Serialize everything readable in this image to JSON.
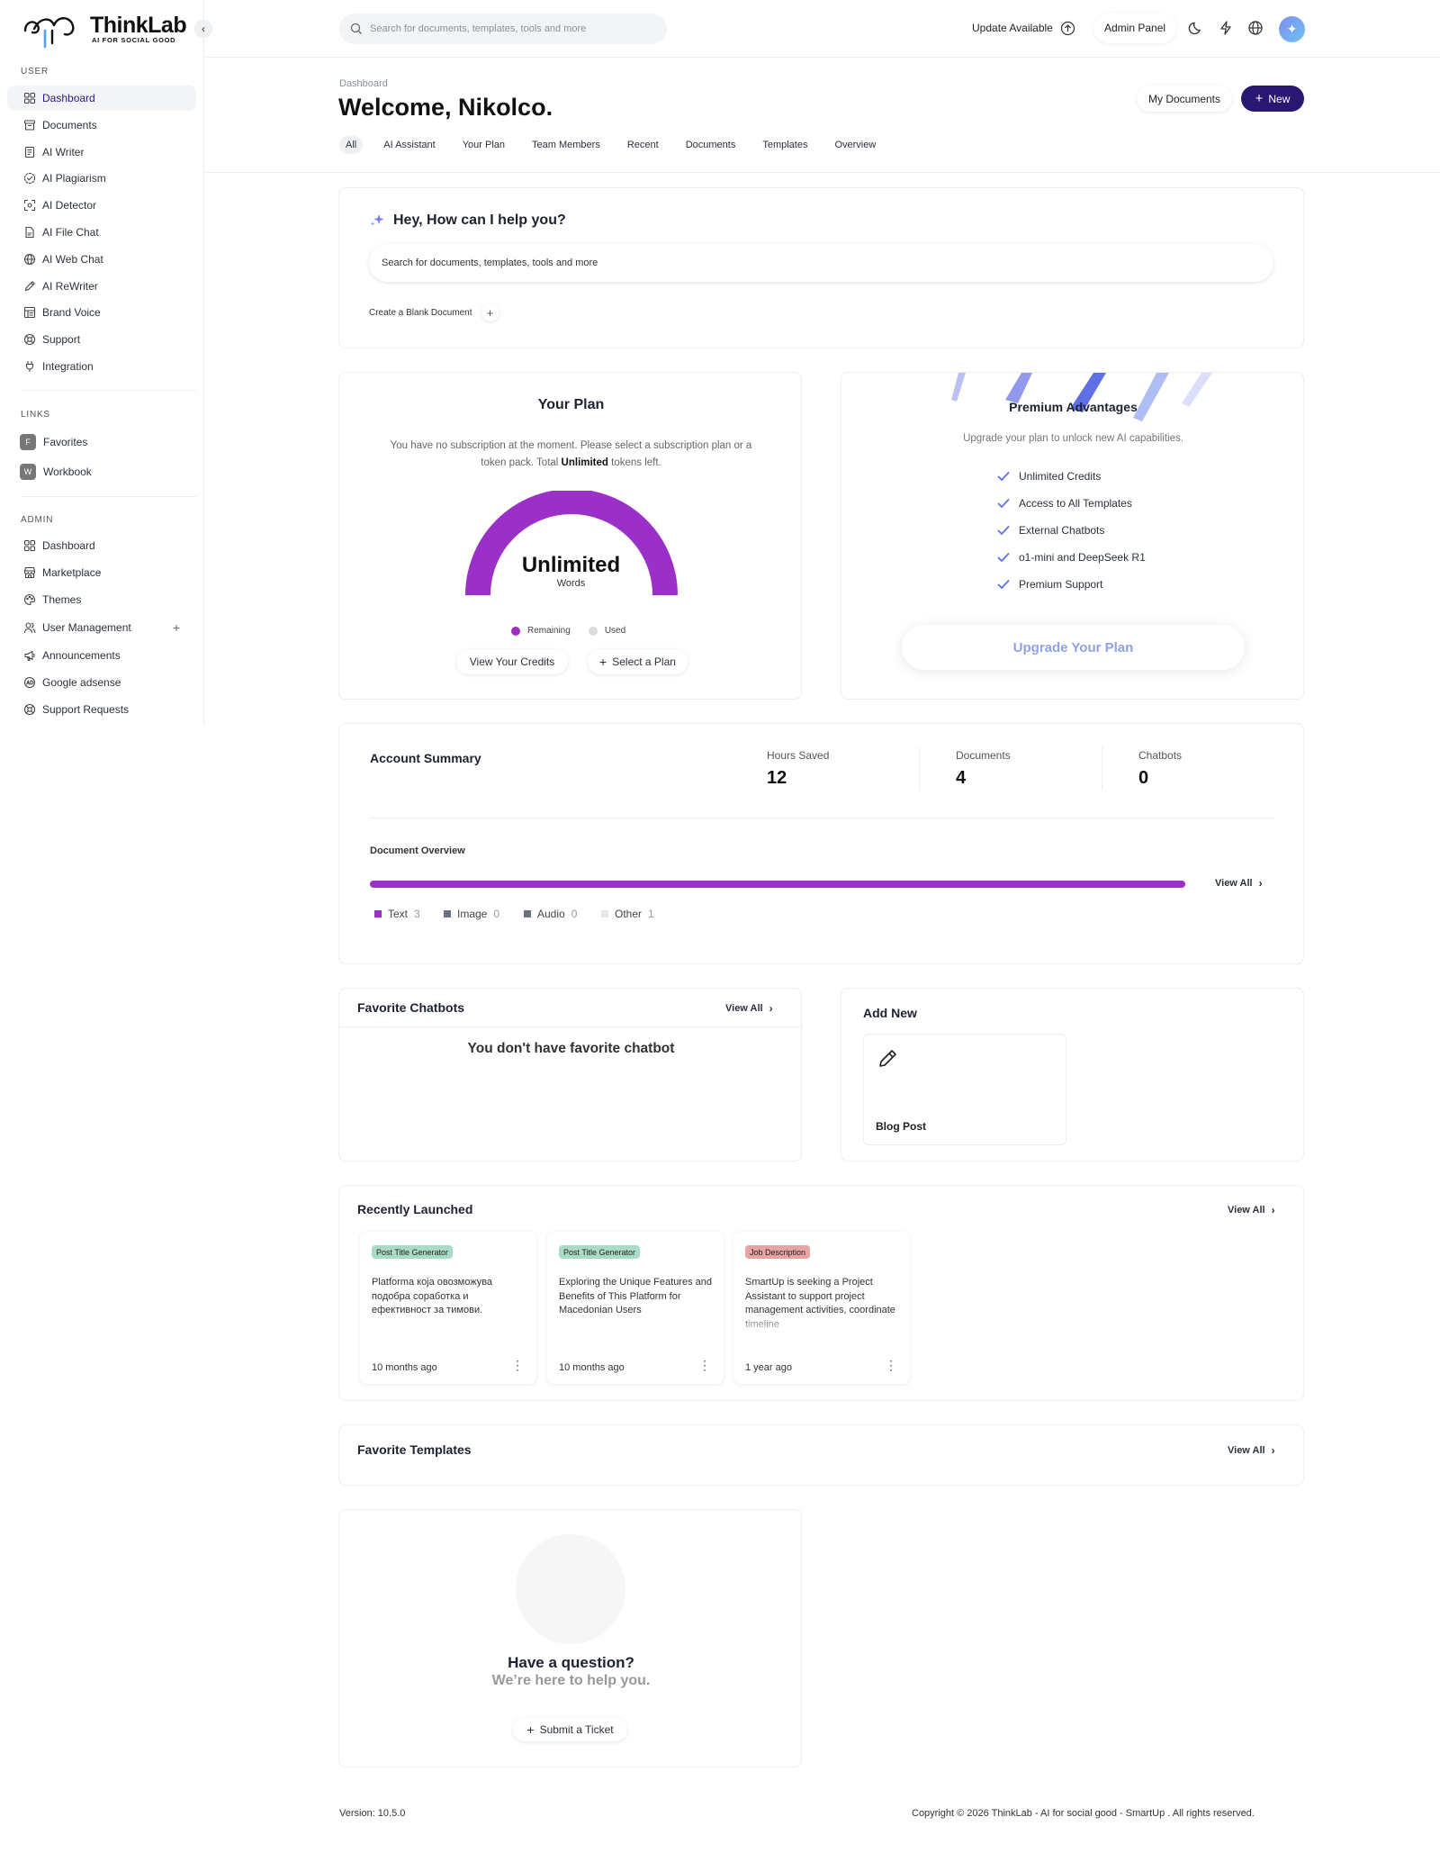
{
  "brand": {
    "name": "ThinkLab",
    "tagline": "AI FOR SOCIAL GOOD"
  },
  "sidebar": {
    "user_label": "USER",
    "user_items": [
      {
        "label": "Dashboard",
        "icon": "grid-icon"
      },
      {
        "label": "Documents",
        "icon": "archive-icon"
      },
      {
        "label": "AI Writer",
        "icon": "notepad-icon"
      },
      {
        "label": "AI Plagiarism",
        "icon": "dashed-circle-icon"
      },
      {
        "label": "AI Detector",
        "icon": "scan-icon"
      },
      {
        "label": "AI File Chat",
        "icon": "file-icon"
      },
      {
        "label": "AI Web Chat",
        "icon": "globe-icon"
      },
      {
        "label": "AI ReWriter",
        "icon": "pen-icon"
      },
      {
        "label": "Brand Voice",
        "icon": "layout-icon"
      },
      {
        "label": "Support",
        "icon": "lifebuoy-icon"
      },
      {
        "label": "Integration",
        "icon": "plug-icon"
      }
    ],
    "links_label": "LINKS",
    "link_items": [
      {
        "badge": "F",
        "label": "Favorites"
      },
      {
        "badge": "W",
        "label": "Workbook"
      }
    ],
    "admin_label": "ADMIN",
    "admin_items": [
      {
        "label": "Dashboard",
        "icon": "grid-icon"
      },
      {
        "label": "Marketplace",
        "icon": "store-icon"
      },
      {
        "label": "Themes",
        "icon": "palette-icon"
      },
      {
        "label": "User Management",
        "icon": "users-icon"
      },
      {
        "label": "Announcements",
        "icon": "megaphone-icon"
      },
      {
        "label": "Google adsense",
        "icon": "ad-icon"
      },
      {
        "label": "Support Requests",
        "icon": "lifebuoy-icon"
      }
    ]
  },
  "topbar": {
    "search_placeholder": "Search for documents, templates, tools and more",
    "update_label": "Update Available",
    "admin_panel_label": "Admin Panel"
  },
  "header": {
    "breadcrumb": "Dashboard",
    "title": "Welcome, Nikolco.",
    "my_documents_label": "My Documents",
    "new_label": "New",
    "tabs": [
      "All",
      "AI Assistant",
      "Your Plan",
      "Team Members",
      "Recent",
      "Documents",
      "Templates",
      "Overview"
    ]
  },
  "assistant": {
    "title": "Hey, How can I help you?",
    "search_placeholder": "Search for documents, templates, tools and more",
    "blank_doc_label": "Create a Blank Document"
  },
  "plan": {
    "title": "Your Plan",
    "desc_1": "You have no subscription at the moment. Please select a subscription plan or a",
    "desc_2a": "token pack. Total ",
    "desc_2b": "Unlimited",
    "desc_2c": " tokens left.",
    "gauge_value": "Unlimited",
    "gauge_unit": "Words",
    "remaining_label": "Remaining",
    "used_label": "Used",
    "view_credits_label": "View Your Credits",
    "select_plan_label": "Select a Plan",
    "colors": {
      "remaining": "#9b30c8",
      "used": "#dcdcdc"
    }
  },
  "premium": {
    "title": "Premium Advantages",
    "subtitle": "Upgrade your plan to unlock new AI capabilities.",
    "features": [
      "Unlimited Credits",
      "Access to All Templates",
      "External Chatbots",
      "o1-mini and DeepSeek R1",
      "Premium Support"
    ],
    "upgrade_label": "Upgrade Your Plan"
  },
  "summary": {
    "title": "Account Summary",
    "stats": [
      {
        "label": "Hours Saved",
        "value": "12"
      },
      {
        "label": "Documents",
        "value": "4"
      },
      {
        "label": "Chatbots",
        "value": "0"
      }
    ],
    "overview_title": "Document Overview",
    "view_all_label": "View All",
    "legend": [
      {
        "label": "Text",
        "count": "3",
        "color": "#9b30c8"
      },
      {
        "label": "Image",
        "count": "0",
        "color": "#6b7280"
      },
      {
        "label": "Audio",
        "count": "0",
        "color": "#6b7280"
      },
      {
        "label": "Other",
        "count": "1",
        "color": "#e5e7eb"
      }
    ]
  },
  "fav_chatbots": {
    "title": "Favorite Chatbots",
    "view_all_label": "View All",
    "empty": "You don't have favorite chatbot"
  },
  "add_new": {
    "title": "Add New",
    "item_label": "Blog Post"
  },
  "recent": {
    "title": "Recently Launched",
    "view_all_label": "View All",
    "items": [
      {
        "tag": "Post Title Generator",
        "tag_color": "#a9dcc4",
        "text": "Platforma која овозможува подобра соработка и ефективност за тимови.",
        "time": "10 months ago"
      },
      {
        "tag": "Post Title Generator",
        "tag_color": "#a9dcc4",
        "text": "Exploring the Unique Features and Benefits of This Platform for Macedonian Users",
        "time": "10 months ago"
      },
      {
        "tag": "Job Description",
        "tag_color": "#e8a3a3",
        "text": "SmartUp is seeking a Project Assistant to support project management activities, coordinate timeline",
        "time": "1 year ago"
      }
    ]
  },
  "fav_templates": {
    "title": "Favorite Templates",
    "view_all_label": "View All"
  },
  "help": {
    "title": "Have a question?",
    "subtitle": "We’re here to help you.",
    "ticket_label": "Submit a Ticket"
  },
  "footer": {
    "version": "Version: 10.5.0",
    "copyright": "Copyright © 2026 ThinkLab - AI for social good - SmartUp . All rights reserved."
  }
}
